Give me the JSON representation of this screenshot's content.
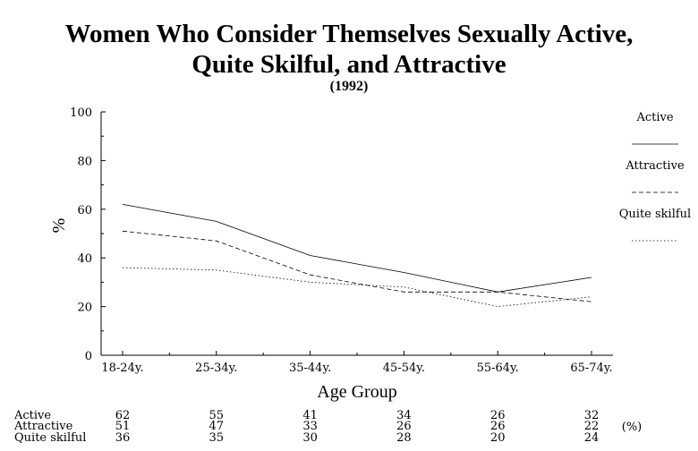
{
  "chart_data": {
    "type": "line",
    "title": "Women Who Consider Themselves Sexually Active,",
    "title_line2": "Quite Skilful, and Attractive",
    "subtitle": "(1992)",
    "xlabel": "Age Group",
    "ylabel": "%",
    "ylim": [
      0,
      100
    ],
    "yticks": [
      "0",
      "20",
      "40",
      "60",
      "80",
      "100"
    ],
    "categories": [
      "18-24y.",
      "25-34y.",
      "35-44y.",
      "45-54y.",
      "55-64y.",
      "65-74y."
    ],
    "series": [
      {
        "name": "Active",
        "values": [
          62,
          55,
          41,
          34,
          26,
          32
        ],
        "dash": "solid"
      },
      {
        "name": "Attractive",
        "values": [
          51,
          47,
          33,
          26,
          26,
          22
        ],
        "dash": "dashed"
      },
      {
        "name": "Quite skilful",
        "values": [
          36,
          35,
          30,
          28,
          20,
          24
        ],
        "dash": "dotted"
      }
    ],
    "legend_position": "right",
    "grid": false,
    "table": {
      "unit": "(%)",
      "rows": [
        {
          "label": "Active",
          "values": [
            "62",
            "55",
            "41",
            "34",
            "26",
            "32"
          ]
        },
        {
          "label": "Attractive",
          "values": [
            "51",
            "47",
            "33",
            "26",
            "26",
            "22"
          ]
        },
        {
          "label": "Quite skilful",
          "values": [
            "36",
            "35",
            "30",
            "28",
            "20",
            "24"
          ]
        }
      ]
    }
  }
}
